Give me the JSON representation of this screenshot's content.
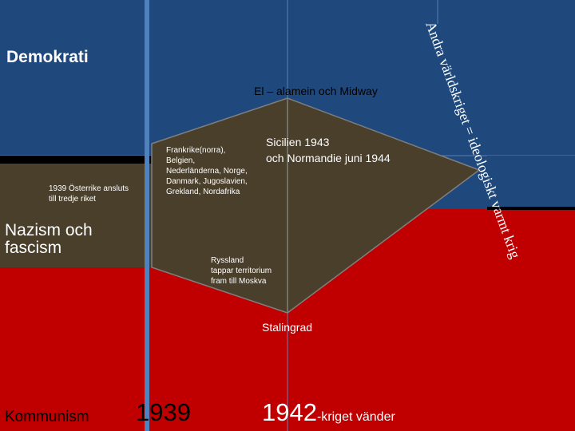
{
  "regions": {
    "democracy": "Demokrati",
    "nazism": "Nazism och\nfascism",
    "communism": "Kommunism"
  },
  "events": {
    "austria_1939": "1939 Österrike ansluts\ntill tredje riket",
    "western_front": "Frankrike(norra),\nBelgien,\nNederländerna, Norge,\nDanmark, Jugoslavien,\nGrekland, Nordafrika",
    "el_alamein": "El – alamein och Midway",
    "sicily_normandy": "Sicilien 1943\noch Normandie juni 1944",
    "russia": "Ryssland\ntappar territorium\nfram till Moskva",
    "stalingrad": "Stalingrad"
  },
  "timeline": {
    "year_1939": "1939",
    "year_1942": "1942",
    "turn_label": "-kriget vänder"
  },
  "vertical_caption": "Andra världskriget = ideologiskt varmt krig",
  "colors": {
    "democracy_blue": "#1f497d",
    "communism_red": "#c00000",
    "axis_olive": "#4a3f2b",
    "timeline_blue": "#4f81bd"
  }
}
